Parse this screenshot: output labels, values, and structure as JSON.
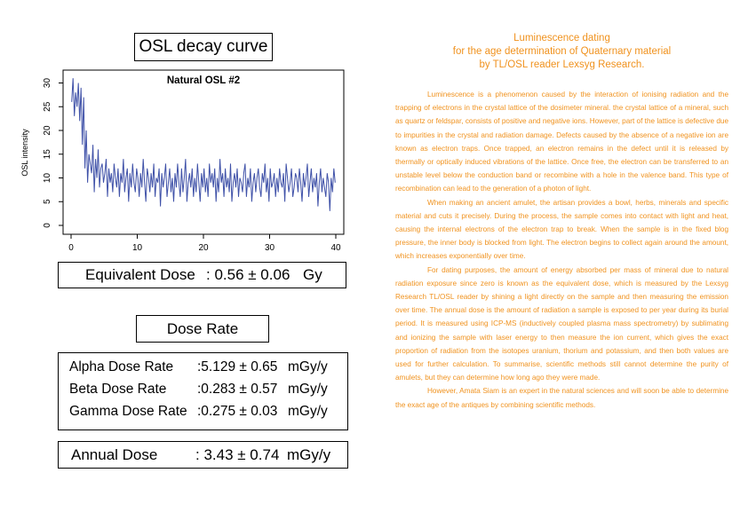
{
  "left_panel": {
    "chart_title": "OSL decay curve",
    "equivalent_dose": {
      "label": "Equivalent Dose",
      "value": ": 0.56 ± 0.06",
      "unit": "Gy"
    },
    "dose_rate_title": "Dose Rate",
    "dose_rates": [
      {
        "label": "Alpha Dose Rate",
        "value": ":5.129 ± 0.65",
        "unit": "mGy/y"
      },
      {
        "label": "Beta Dose Rate",
        "value": ":0.283 ± 0.57",
        "unit": "mGy/y"
      },
      {
        "label": "Gamma Dose Rate",
        "value": ":0.275 ± 0.03",
        "unit": "mGy/y"
      }
    ],
    "annual_dose": {
      "label": "Annual Dose",
      "value": ": 3.43 ± 0.74",
      "unit": "mGy/y"
    }
  },
  "chart_data": {
    "type": "line",
    "title": "Natural OSL #2",
    "xlabel": "",
    "ylabel": "OSL intensity",
    "xlim": [
      0,
      40
    ],
    "ylim": [
      0,
      31
    ],
    "xticks": [
      "0",
      "10",
      "20",
      "30",
      "40"
    ],
    "yticks": [
      "0",
      "5",
      "10",
      "15",
      "20",
      "25",
      "30"
    ],
    "series_color": "#3f51a8",
    "grid": false,
    "x_start": 0.1,
    "x_step": 0.2,
    "values": [
      26,
      31,
      23,
      28,
      25,
      30,
      22,
      29,
      17,
      27,
      12,
      20,
      9,
      15,
      13,
      11,
      17,
      7,
      14,
      10,
      16,
      8,
      12,
      13,
      9,
      11,
      14,
      6,
      12,
      9,
      11,
      7,
      13,
      10,
      8,
      12,
      6,
      11,
      9,
      14,
      7,
      10,
      12,
      5,
      11,
      8,
      13,
      9,
      7,
      12,
      10,
      6,
      11,
      8,
      14,
      9,
      5,
      12,
      10,
      7,
      11,
      8,
      13,
      6,
      10,
      9,
      12,
      4,
      11,
      8,
      10,
      13,
      6,
      9,
      12,
      7,
      10,
      5,
      11,
      8,
      13,
      9,
      6,
      12,
      7,
      10,
      14,
      5,
      9,
      11,
      8,
      12,
      6,
      10,
      7,
      13,
      9,
      5,
      11,
      8,
      12,
      7,
      10,
      6,
      13,
      9,
      11,
      8,
      12,
      5,
      10,
      7,
      14,
      9,
      11,
      6,
      12,
      8,
      10,
      7,
      13,
      5,
      9,
      11,
      8,
      12,
      6,
      10,
      9,
      7,
      11,
      13,
      6,
      10,
      8,
      12,
      5,
      9,
      11,
      7,
      10,
      12,
      8,
      6,
      11,
      9,
      13,
      7,
      10,
      5,
      12,
      8,
      9,
      11,
      6,
      10,
      7,
      12,
      9,
      8,
      11,
      5,
      13,
      10,
      7,
      9,
      12,
      6,
      8,
      11,
      10,
      7,
      12,
      9,
      5,
      11,
      8,
      10,
      13,
      6,
      9,
      12,
      7,
      10,
      8,
      11,
      4,
      9,
      12,
      7,
      10,
      8,
      6,
      11,
      9,
      3,
      10,
      7,
      12,
      9
    ]
  },
  "article": {
    "heading": [
      "Luminescence dating",
      "for the age determination of Quaternary material",
      "by TL/OSL reader Lexsyg Research."
    ],
    "paragraphs": [
      "Luminescence is a phenomenon caused by the interaction of ionising radiation and the trapping of electrons in the crystal lattice of the dosimeter mineral. the crystal lattice of a mineral, such as quartz or feldspar, consists of positive and negative ions. However, part of the lattice is defective due to impurities in the crystal and radiation damage. Defects caused by the absence of a negative ion are known as electron traps. Once trapped, an electron remains in the defect until it is released by thermally or optically induced vibrations of the lattice. Once free, the electron can be transferred to an unstable level below the conduction band or recombine with a hole in the valence band. This type of recombination can lead to the generation of a photon of light.",
      "When making an ancient amulet, the artisan provides a bowl, herbs, minerals and specific material and cuts it precisely. During the process, the sample comes into contact with light and heat, causing the internal electrons of the electron trap to break. When the sample is in the fixed blog pressure, the inner body is blocked from light. The electron begins to collect again around the amount, which increases exponentially over time.",
      "For dating purposes, the amount of energy absorbed per mass of mineral due to natural radiation exposure since zero is known as the equivalent dose, which is measured by the Lexsyg Research TL/OSL reader by shining a light directly on the sample and then measuring the emission over time. The annual dose is the amount of radiation a sample is exposed to per year during its burial period. It is measured using ICP-MS (inductively coupled plasma mass spectrometry) by sublimating and ionizing the sample with laser energy to then measure the ion current, which gives the exact proportion of radiation from the isotopes uranium, thorium and potassium, and then both values are used for further calculation. To summarise, scientific methods still cannot determine the purity of amulets, but they can determine how long ago they were made.",
      "However, Amata Siam is an expert in the natural sciences and will soon be able to determine the exact age of the antiques by combining scientific methods."
    ]
  }
}
